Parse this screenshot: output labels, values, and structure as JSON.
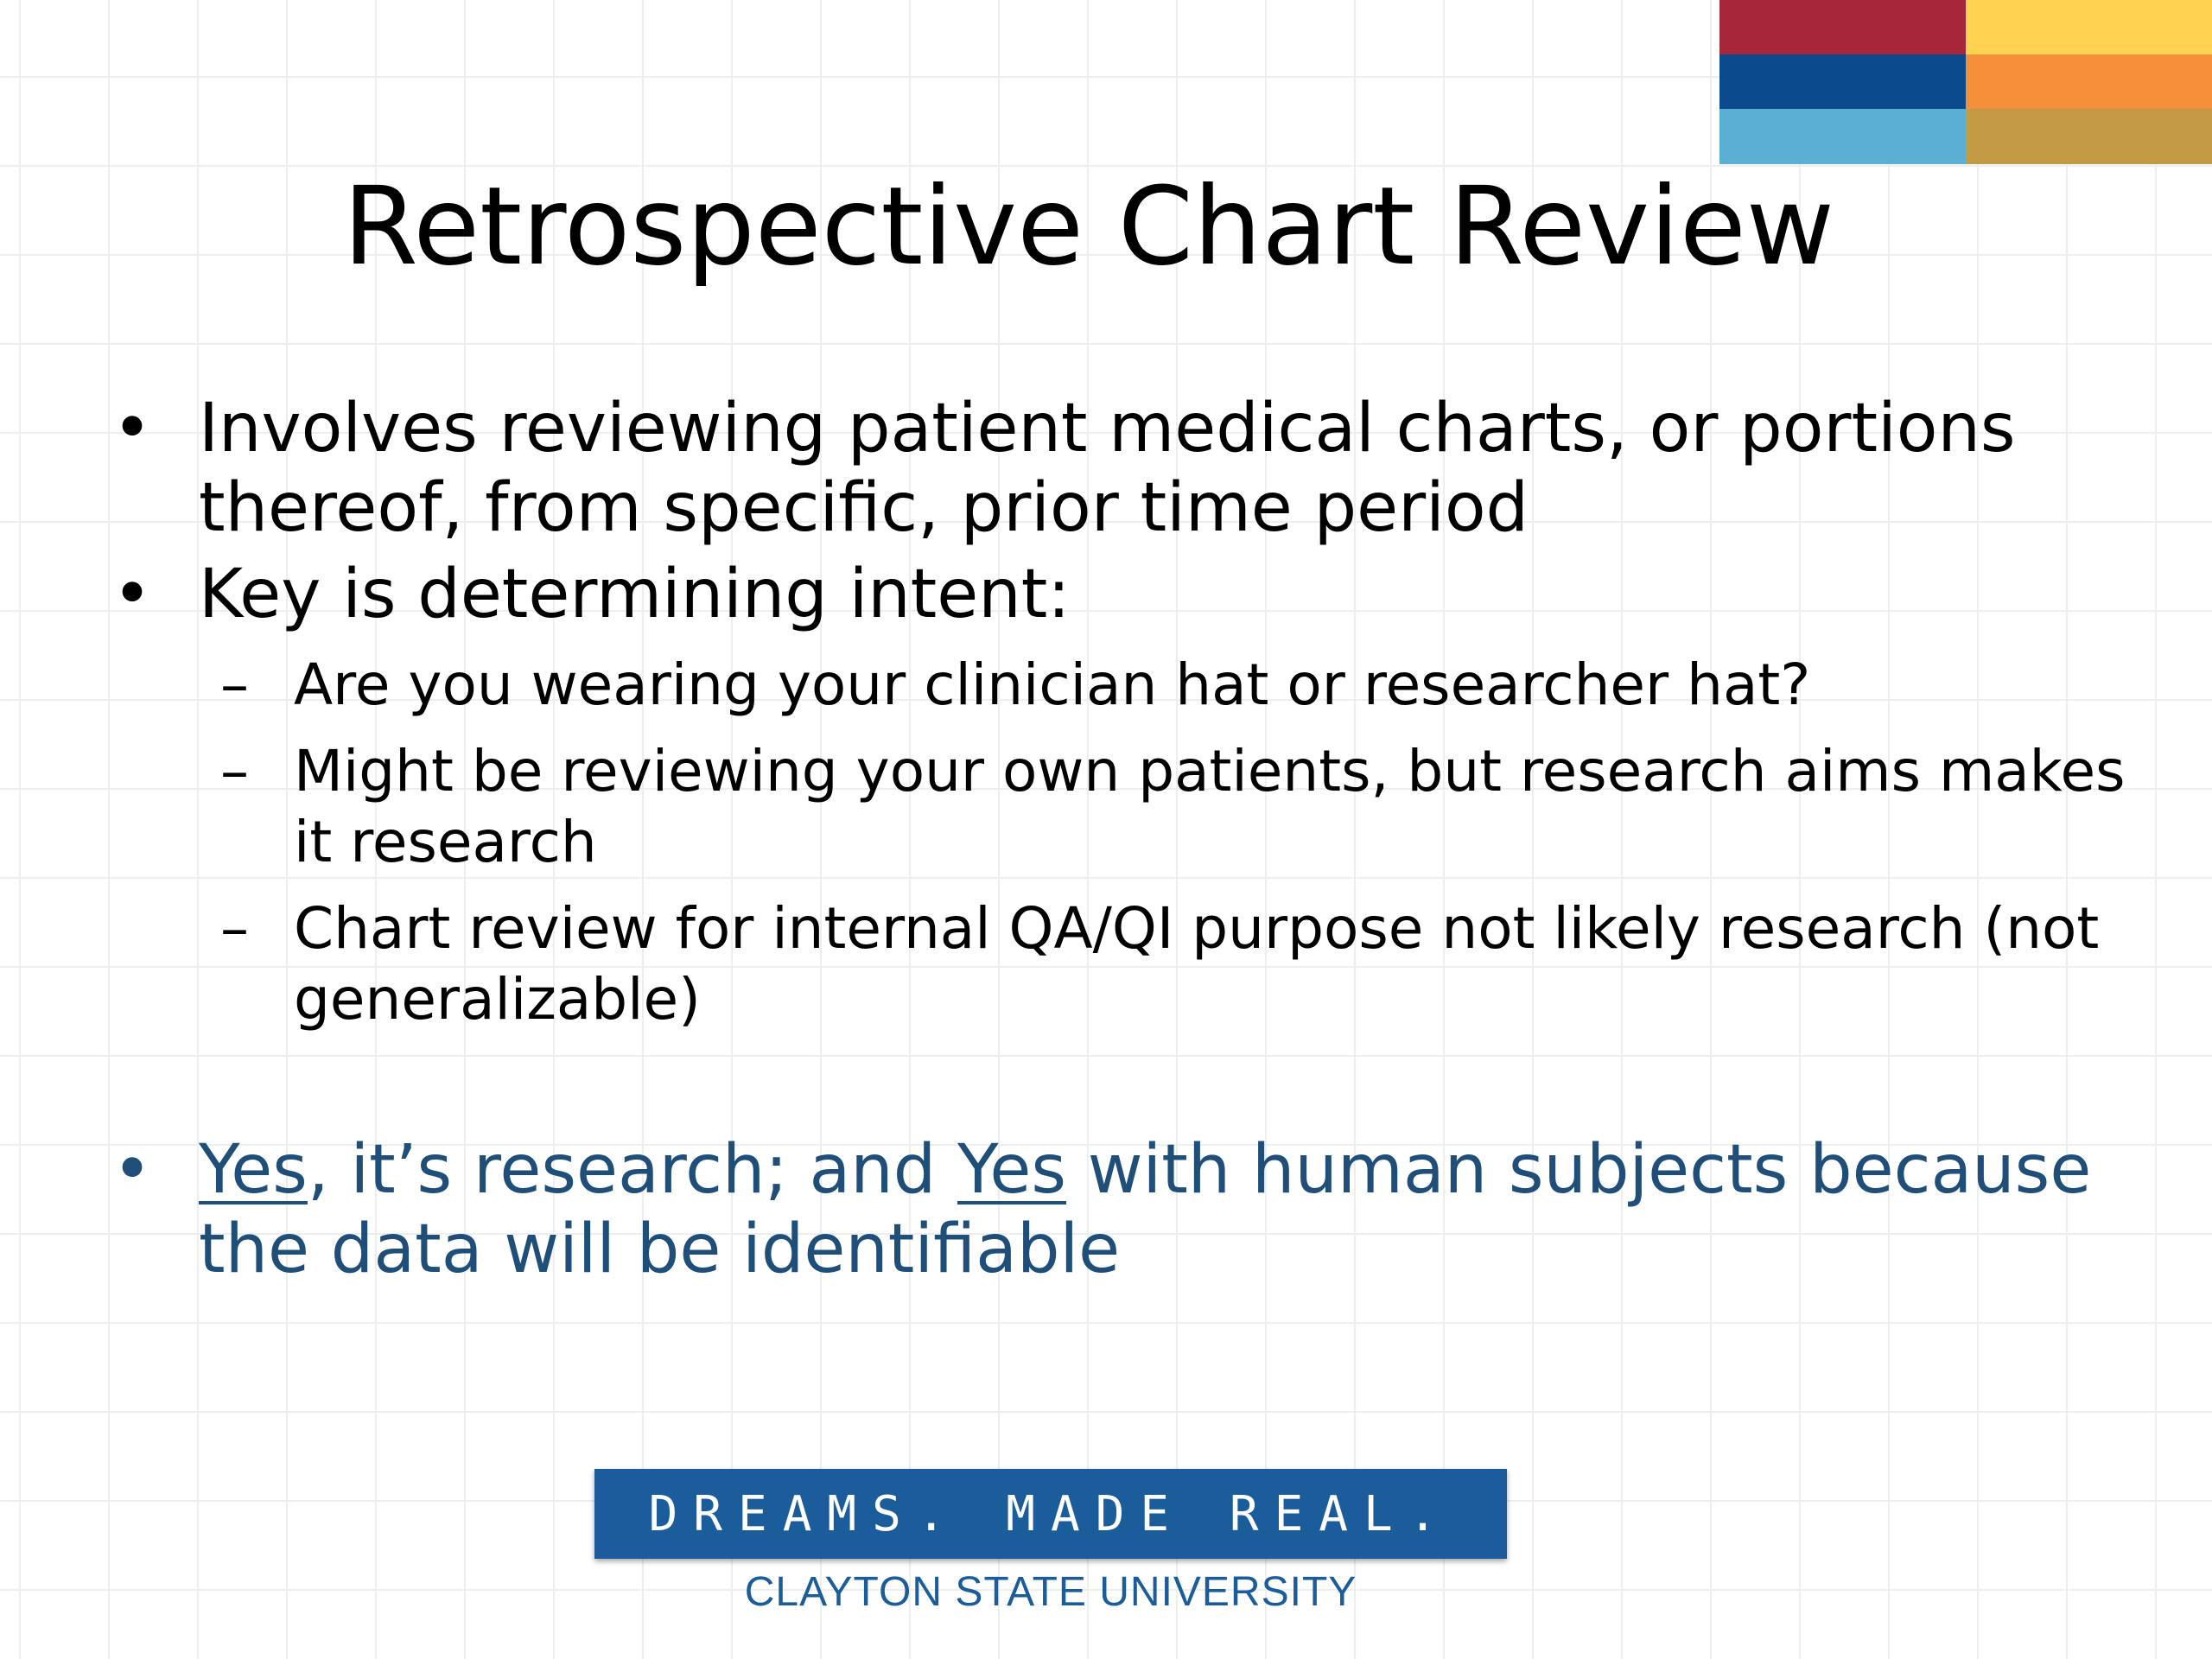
{
  "slide": {
    "title": "Retrospective Chart Review",
    "bullet_glyph": "•",
    "dash_glyph": "–",
    "bullets": [
      "Involves reviewing patient medical charts, or portions thereof, from specific, prior time period",
      "Key is determining intent:"
    ],
    "sub_bullets": [
      "Are you wearing your clinician hat or researcher hat?",
      "Might be reviewing your own patients, but research aims makes it research",
      "Chart review for internal QA/QI purpose not likely research (not generalizable)"
    ],
    "conclusion": {
      "yes_1": "Yes",
      "part_2": ", it’s research; and ",
      "yes_2": "Yes",
      "part_4": " with human subjects because the data will be identifiable"
    }
  },
  "footer": {
    "banner_text": "DREAMS. MADE REAL.",
    "university": "CLAYTON STATE UNIVERSITY"
  },
  "colors": {
    "red": "#a6273a",
    "yellow": "#fdd34f",
    "blue_dark": "#0b4a8c",
    "orange": "#f4903a",
    "blue_light": "#5aafd3",
    "gold": "#c49b45",
    "conclusion_text": "#1f4e79",
    "banner_bg": "#1b5d9b"
  }
}
